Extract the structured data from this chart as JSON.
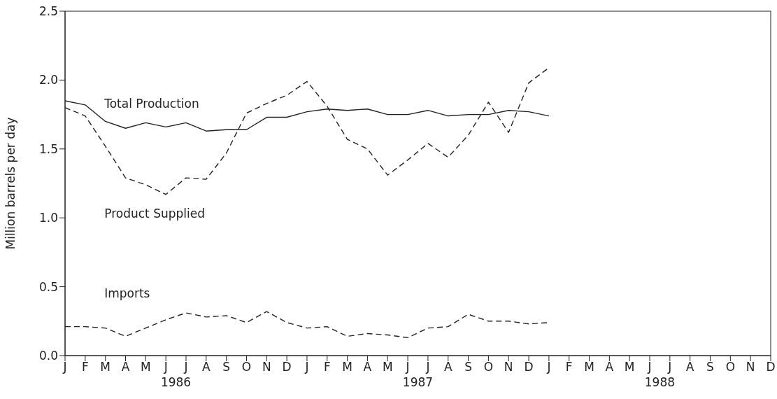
{
  "chart_data": {
    "type": "line",
    "ylabel": "Million barrels per day",
    "categories": [
      "J",
      "F",
      "M",
      "A",
      "M",
      "J",
      "J",
      "A",
      "S",
      "O",
      "N",
      "D",
      "J",
      "F",
      "M",
      "A",
      "M",
      "J",
      "J",
      "A",
      "S",
      "O",
      "N",
      "D",
      "J",
      "F",
      "M",
      "A",
      "M",
      "J",
      "J",
      "A",
      "S",
      "O",
      "N",
      "D"
    ],
    "ylim": [
      0,
      2.5
    ],
    "yticks": [
      {
        "value": 0,
        "label": "0.0"
      },
      {
        "value": 0.5,
        "label": "0.5"
      },
      {
        "value": 1,
        "label": "1.0"
      },
      {
        "value": 1.5,
        "label": "1.5"
      },
      {
        "value": 2,
        "label": "2.0"
      },
      {
        "value": 2.5,
        "label": "2.5"
      }
    ],
    "grid": false,
    "legend": false,
    "marker": "none",
    "series": [
      {
        "name": "Total Production",
        "color": "#222222",
        "line_style": "solid",
        "values": [
          1.85,
          1.82,
          1.7,
          1.65,
          1.69,
          1.66,
          1.69,
          1.63,
          1.64,
          1.64,
          1.73,
          1.73,
          1.77,
          1.79,
          1.78,
          1.79,
          1.75,
          1.75,
          1.78,
          1.74,
          1.75,
          1.75,
          1.78,
          1.77,
          1.74,
          null,
          null,
          null,
          null,
          null,
          null,
          null,
          null,
          null,
          null,
          null
        ]
      },
      {
        "name": "Product Supplied",
        "color": "#222222",
        "line_style": "dashed",
        "values": [
          1.8,
          1.74,
          1.52,
          1.29,
          1.24,
          1.17,
          1.29,
          1.28,
          1.47,
          1.76,
          1.83,
          1.89,
          1.99,
          1.81,
          1.57,
          1.5,
          1.31,
          1.42,
          1.54,
          1.44,
          1.6,
          1.84,
          1.62,
          1.98,
          2.09,
          null,
          null,
          null,
          null,
          null,
          null,
          null,
          null,
          null,
          null,
          null
        ]
      },
      {
        "name": "Imports",
        "color": "#222222",
        "line_style": "dashed",
        "values": [
          0.21,
          0.21,
          0.2,
          0.14,
          0.2,
          0.26,
          0.31,
          0.28,
          0.29,
          0.24,
          0.32,
          0.24,
          0.2,
          0.21,
          0.14,
          0.16,
          0.15,
          0.13,
          0.2,
          0.21,
          0.3,
          0.25,
          0.25,
          0.23,
          0.24,
          null,
          null,
          null,
          null,
          null,
          null,
          null,
          null,
          null,
          null,
          null
        ]
      }
    ],
    "annotations": [
      "1986",
      "1987",
      "1988"
    ]
  }
}
